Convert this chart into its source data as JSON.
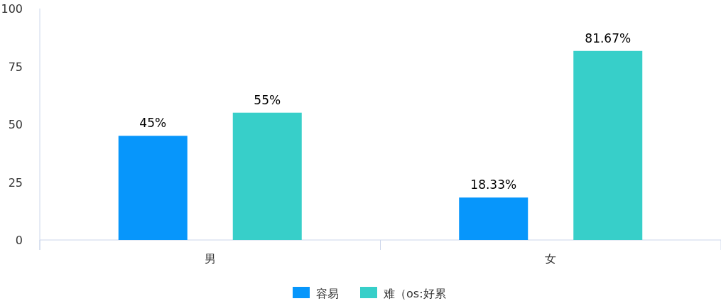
{
  "chart_data": {
    "type": "bar",
    "categories": [
      "男",
      "女"
    ],
    "series": [
      {
        "name": "容易",
        "color": "#0796fb",
        "values": [
          45,
          18.33
        ],
        "value_labels": [
          "45%",
          "18.33%"
        ]
      },
      {
        "name": "难（os:好累",
        "color": "#37cfc9",
        "values": [
          55,
          81.67
        ],
        "value_labels": [
          "55%",
          "81.67%"
        ]
      }
    ],
    "ylim": [
      0,
      100
    ],
    "yticks": [
      0,
      25,
      50,
      75,
      100
    ],
    "grid": false,
    "legend": "bottom"
  }
}
